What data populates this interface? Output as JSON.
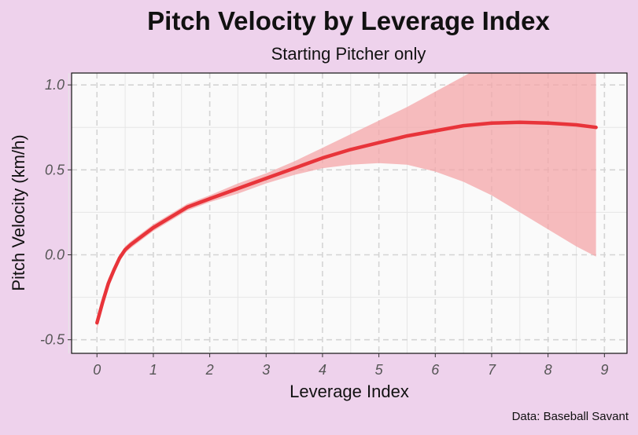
{
  "chart_data": {
    "type": "line",
    "title": "Pitch Velocity by Leverage Index",
    "subtitle": "Starting Pitcher only",
    "xlabel": "Leverage Index",
    "ylabel": "Pitch Velocity (km/h)",
    "caption": "Data: Baseball Savant",
    "xlim": [
      -0.45,
      9.4
    ],
    "ylim": [
      -0.58,
      1.07
    ],
    "xticks": [
      0,
      1,
      2,
      3,
      4,
      5,
      6,
      7,
      8,
      9
    ],
    "xtick_labels": [
      "0",
      "1",
      "2",
      "3",
      "4",
      "5",
      "6",
      "7",
      "8",
      "9"
    ],
    "yticks": [
      -0.5,
      0.0,
      0.5,
      1.0
    ],
    "ytick_labels": [
      "-0.5",
      "0.0",
      "0.5",
      "1.0"
    ],
    "grid": true,
    "colors": {
      "line": "#e8343a",
      "band": "#f4a5a8",
      "panel": "#fafafa"
    },
    "series": [
      {
        "x": [
          0.0,
          0.1,
          0.2,
          0.3,
          0.4,
          0.5,
          0.6,
          0.8,
          1.0,
          1.3,
          1.6,
          2.0,
          2.5,
          3.0,
          3.5,
          4.0,
          4.5,
          5.0,
          5.5,
          6.0,
          6.5,
          7.0,
          7.5,
          8.0,
          8.5,
          8.85
        ],
        "y": [
          -0.4,
          -0.28,
          -0.17,
          -0.09,
          -0.02,
          0.03,
          0.06,
          0.11,
          0.16,
          0.22,
          0.28,
          0.33,
          0.39,
          0.45,
          0.51,
          0.57,
          0.62,
          0.66,
          0.7,
          0.73,
          0.76,
          0.775,
          0.78,
          0.775,
          0.765,
          0.75
        ],
        "lower": [
          -0.44,
          -0.31,
          -0.2,
          -0.11,
          -0.04,
          0.01,
          0.04,
          0.09,
          0.14,
          0.2,
          0.26,
          0.31,
          0.36,
          0.42,
          0.47,
          0.51,
          0.53,
          0.54,
          0.53,
          0.49,
          0.43,
          0.35,
          0.25,
          0.15,
          0.05,
          -0.01
        ],
        "upper": [
          -0.36,
          -0.25,
          -0.14,
          -0.07,
          0.0,
          0.05,
          0.08,
          0.13,
          0.18,
          0.24,
          0.3,
          0.35,
          0.42,
          0.48,
          0.55,
          0.63,
          0.71,
          0.79,
          0.87,
          0.96,
          1.05,
          1.14,
          1.24,
          1.36,
          1.48,
          1.56
        ]
      }
    ]
  }
}
